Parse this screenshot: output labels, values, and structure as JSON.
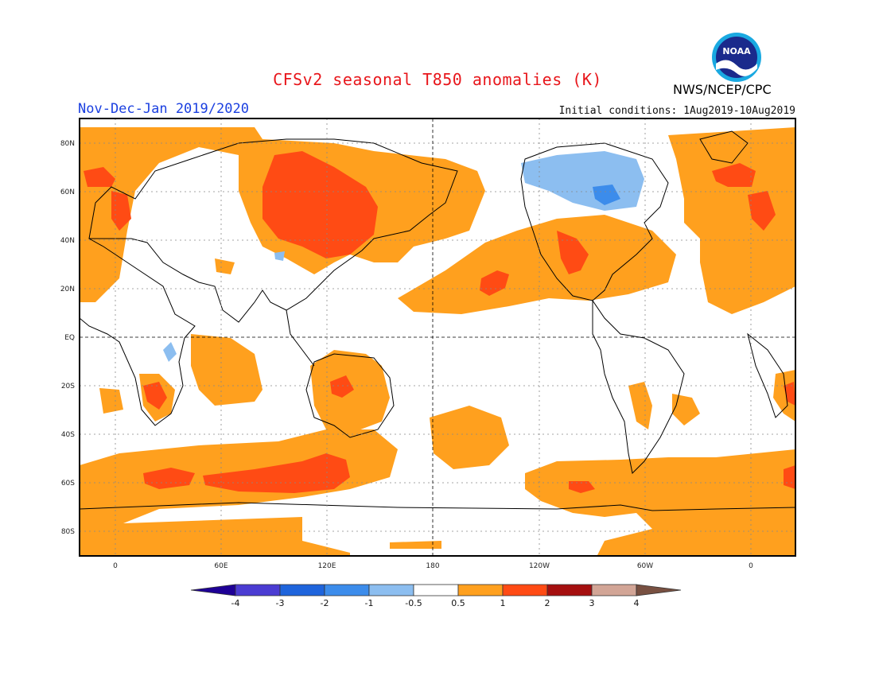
{
  "title": "CFSv2 seasonal T850 anomalies (K)",
  "season": "Nov-Dec-Jan 2019/2020",
  "initial_conditions": "Initial conditions: 1Aug2019-10Aug2019",
  "agency": "NWS/NCEP/CPC",
  "logo": {
    "text": "NOAA",
    "icon": "noaa-logo-icon"
  },
  "map": {
    "projection": "cylindrical",
    "lon_range": [
      -20,
      380
    ],
    "lat_range": [
      -90,
      90
    ],
    "grid": "dotted",
    "lat_ticks": [
      "80N",
      "60N",
      "40N",
      "20N",
      "EQ",
      "20S",
      "40S",
      "60S",
      "80S"
    ],
    "lon_ticks": [
      "0",
      "60E",
      "120E",
      "180",
      "120W",
      "60W",
      "0"
    ]
  },
  "colorbar": {
    "units": "K",
    "labels": [
      "-4",
      "-3",
      "-2",
      "-1",
      "-0.5",
      "0.5",
      "1",
      "2",
      "3",
      "4"
    ],
    "colors": [
      "#1e0096",
      "#4b3cd2",
      "#1e64dc",
      "#3c8ceb",
      "#8cbef0",
      "#ffffff",
      "#ffa01e",
      "#ff4b14",
      "#a50f0f",
      "#d2a596",
      "#785041"
    ]
  }
}
